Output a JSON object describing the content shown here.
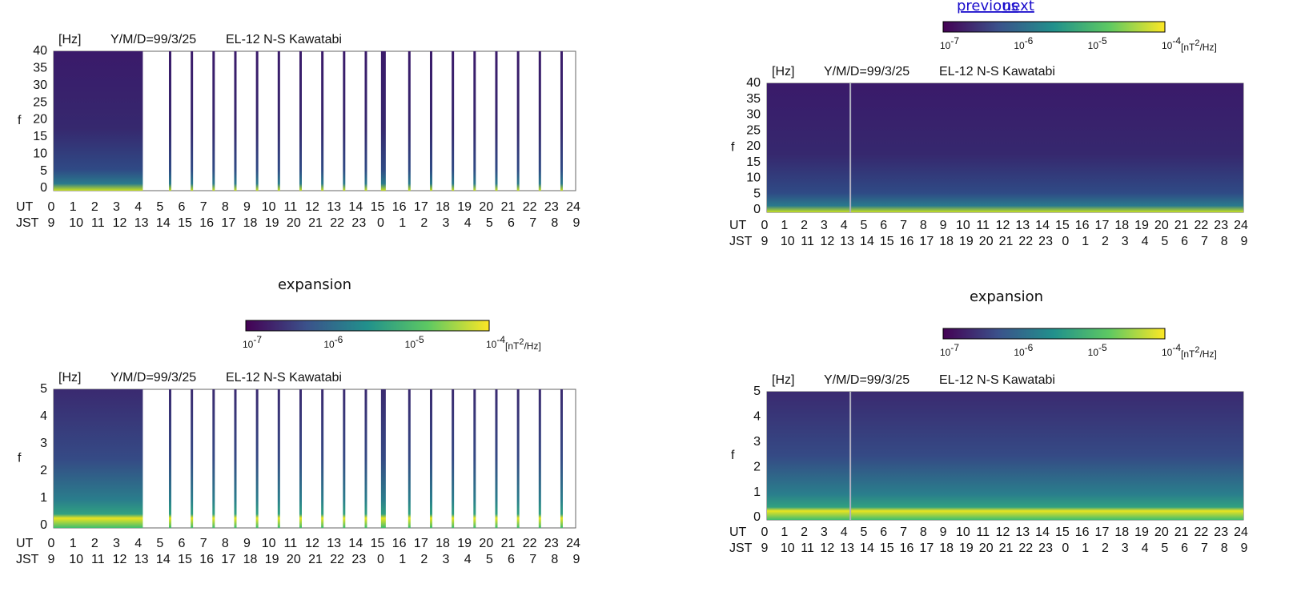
{
  "nav": {
    "previous": "previous",
    "next": "next"
  },
  "captions": [
    "expansion",
    "expansion"
  ],
  "colorbars": [
    {
      "ticks": [
        {
          "base": "10",
          "exp": "-7"
        },
        {
          "base": "10",
          "exp": "-6"
        },
        {
          "base": "10",
          "exp": "-5"
        },
        {
          "base": "10",
          "exp": "-4"
        }
      ],
      "unit": {
        "pre": "[nT",
        "sup": "2",
        "post": "/Hz]"
      }
    },
    {
      "ticks": [
        {
          "base": "10",
          "exp": "-7"
        },
        {
          "base": "10",
          "exp": "-6"
        },
        {
          "base": "10",
          "exp": "-5"
        },
        {
          "base": "10",
          "exp": "-4"
        }
      ],
      "unit": {
        "pre": "[nT",
        "sup": "2",
        "post": "/Hz]"
      }
    },
    {
      "ticks": [
        {
          "base": "10",
          "exp": "-7"
        },
        {
          "base": "10",
          "exp": "-6"
        },
        {
          "base": "10",
          "exp": "-5"
        },
        {
          "base": "10",
          "exp": "-4"
        }
      ],
      "unit": {
        "pre": "[nT",
        "sup": "2",
        "post": "/Hz]"
      }
    }
  ],
  "panels": [
    {
      "unit": "[Hz]",
      "date": "Y/M/D=99/3/25",
      "station": "EL-12 N-S Kawatabi",
      "f_label": "f",
      "f_ticks": [
        0,
        5,
        10,
        15,
        20,
        25,
        30,
        35,
        40
      ],
      "ut_label": "UT",
      "ut_ticks": [
        0,
        1,
        2,
        3,
        4,
        5,
        6,
        7,
        8,
        9,
        10,
        11,
        12,
        13,
        14,
        15,
        16,
        17,
        18,
        19,
        20,
        21,
        22,
        23,
        24
      ],
      "jst_label": "JST",
      "jst_ticks": [
        9,
        10,
        11,
        12,
        13,
        14,
        15,
        16,
        17,
        18,
        19,
        20,
        21,
        22,
        23,
        0,
        1,
        2,
        3,
        4,
        5,
        6,
        7,
        8,
        9
      ]
    },
    {
      "unit": "[Hz]",
      "date": "Y/M/D=99/3/25",
      "station": "EL-12 N-S Kawatabi",
      "f_label": "f",
      "f_ticks": [
        0,
        5,
        10,
        15,
        20,
        25,
        30,
        35,
        40
      ],
      "ut_label": "UT",
      "ut_ticks": [
        0,
        1,
        2,
        3,
        4,
        5,
        6,
        7,
        8,
        9,
        10,
        11,
        12,
        13,
        14,
        15,
        16,
        17,
        18,
        19,
        20,
        21,
        22,
        23,
        24
      ],
      "jst_label": "JST",
      "jst_ticks": [
        9,
        10,
        11,
        12,
        13,
        14,
        15,
        16,
        17,
        18,
        19,
        20,
        21,
        22,
        23,
        0,
        1,
        2,
        3,
        4,
        5,
        6,
        7,
        8,
        9
      ]
    },
    {
      "unit": "[Hz]",
      "date": "Y/M/D=99/3/25",
      "station": "EL-12 N-S Kawatabi",
      "f_label": "f",
      "f_ticks": [
        0,
        1,
        2,
        3,
        4,
        5
      ],
      "ut_label": "UT",
      "ut_ticks": [
        0,
        1,
        2,
        3,
        4,
        5,
        6,
        7,
        8,
        9,
        10,
        11,
        12,
        13,
        14,
        15,
        16,
        17,
        18,
        19,
        20,
        21,
        22,
        23,
        24
      ],
      "jst_label": "JST",
      "jst_ticks": [
        9,
        10,
        11,
        12,
        13,
        14,
        15,
        16,
        17,
        18,
        19,
        20,
        21,
        22,
        23,
        0,
        1,
        2,
        3,
        4,
        5,
        6,
        7,
        8,
        9
      ]
    },
    {
      "unit": "[Hz]",
      "date": "Y/M/D=99/3/25",
      "station": "EL-12 N-S Kawatabi",
      "f_label": "f",
      "f_ticks": [
        0,
        1,
        2,
        3,
        4,
        5
      ],
      "ut_label": "UT",
      "ut_ticks": [
        0,
        1,
        2,
        3,
        4,
        5,
        6,
        7,
        8,
        9,
        10,
        11,
        12,
        13,
        14,
        15,
        16,
        17,
        18,
        19,
        20,
        21,
        22,
        23,
        24
      ],
      "jst_label": "JST",
      "jst_ticks": [
        9,
        10,
        11,
        12,
        13,
        14,
        15,
        16,
        17,
        18,
        19,
        20,
        21,
        22,
        23,
        0,
        1,
        2,
        3,
        4,
        5,
        6,
        7,
        8,
        9
      ]
    }
  ]
}
